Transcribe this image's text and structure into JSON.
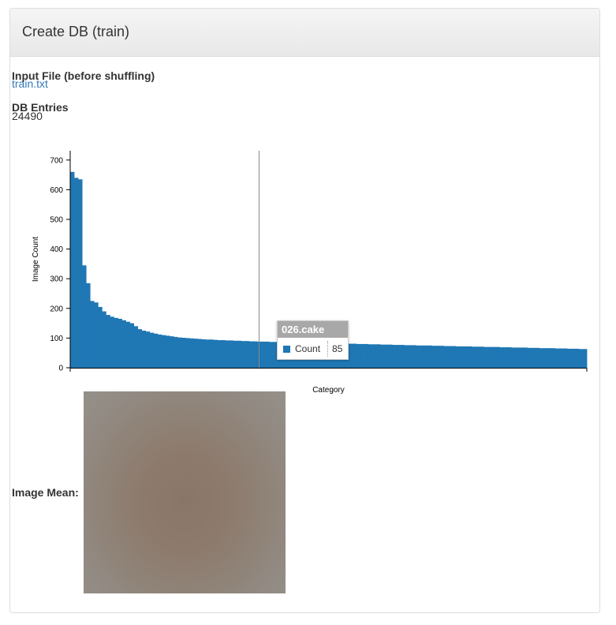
{
  "panel": {
    "title": "Create DB (train)"
  },
  "input_file": {
    "label": "Input File (before shuffling)",
    "link_text": "train.txt"
  },
  "db_entries": {
    "label": "DB Entries",
    "value": "24490"
  },
  "tooltip": {
    "category": "026.cake",
    "series": "Count",
    "value": "85"
  },
  "image_mean": {
    "label": "Image Mean:"
  },
  "chart_data": {
    "type": "bar",
    "xlabel": "Category",
    "ylabel": "Image Count",
    "ylim": [
      0,
      720
    ],
    "yticks": [
      0,
      100,
      200,
      300,
      400,
      500,
      600,
      700
    ],
    "series": [
      {
        "name": "Count",
        "color": "#1f77b4"
      }
    ],
    "highlighted_category": "026.cake",
    "values": [
      660,
      640,
      635,
      345,
      285,
      225,
      220,
      205,
      190,
      178,
      172,
      168,
      165,
      160,
      155,
      150,
      140,
      130,
      125,
      122,
      118,
      115,
      112,
      110,
      108,
      106,
      104,
      102,
      101,
      100,
      99,
      98,
      97,
      96,
      95,
      95,
      94,
      93,
      93,
      92,
      92,
      91,
      91,
      90,
      90,
      89,
      89,
      88,
      88,
      88,
      87,
      87,
      87,
      86,
      86,
      86,
      85,
      85,
      85,
      85,
      84,
      84,
      84,
      83,
      83,
      83,
      82,
      82,
      82,
      81,
      81,
      81,
      80,
      80,
      80,
      79,
      79,
      79,
      78,
      78,
      78,
      77,
      77,
      77,
      76,
      76,
      76,
      75,
      75,
      75,
      75,
      74,
      74,
      74,
      73,
      73,
      73,
      72,
      72,
      72,
      72,
      71,
      71,
      71,
      70,
      70,
      70,
      70,
      69,
      69,
      69,
      68,
      68,
      68,
      68,
      67,
      67,
      67,
      66,
      66,
      66,
      66,
      65,
      65,
      65,
      64,
      64,
      64,
      63,
      63
    ]
  }
}
